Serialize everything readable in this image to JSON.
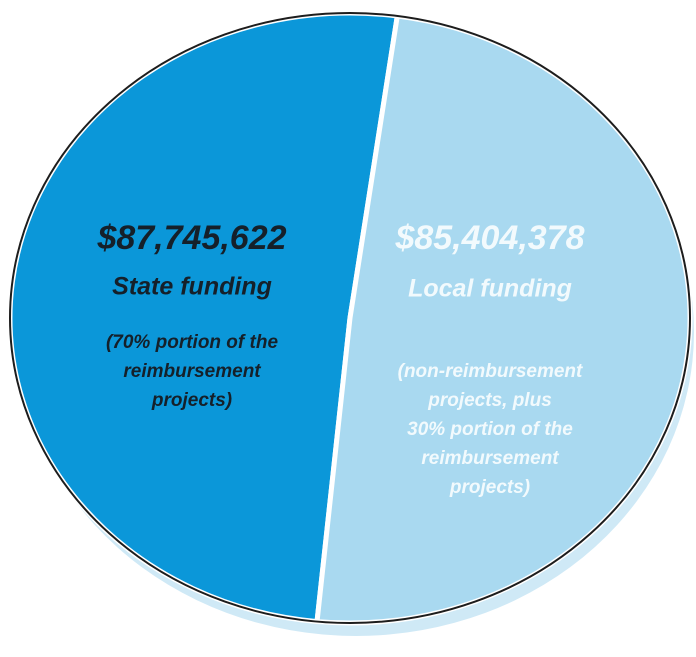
{
  "chart_data": {
    "type": "pie",
    "categories": [
      "State funding",
      "Local funding"
    ],
    "values": [
      87745622,
      85404378
    ],
    "value_labels": [
      "$87,745,622",
      "$85,404,378"
    ],
    "descriptions": [
      [
        "(70% portion of the",
        "reimbursement",
        "projects)"
      ],
      [
        "(non-reimbursement",
        "projects, plus",
        "30% portion of the",
        "reimbursement",
        "projects)"
      ]
    ],
    "colors": [
      "#0b97d9",
      "#a9d9f0"
    ]
  }
}
